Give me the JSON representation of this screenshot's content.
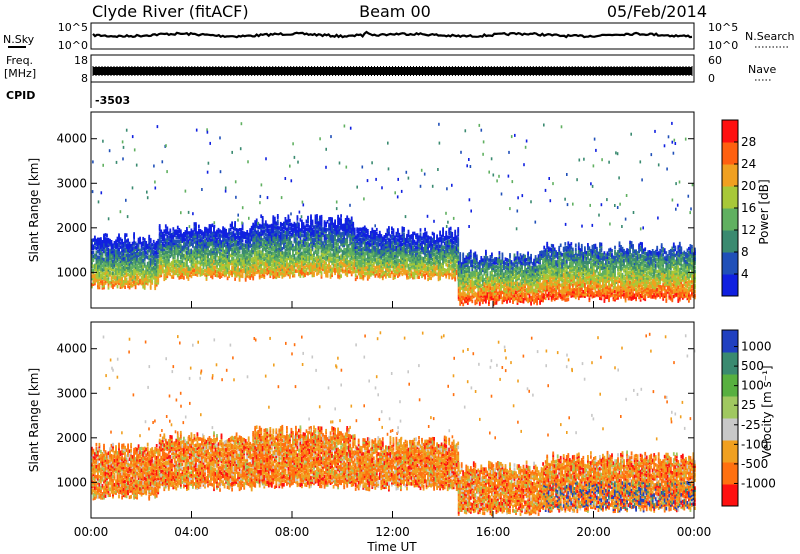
{
  "header": {
    "station": "Clyde River (fitACF)",
    "beam": "Beam 00",
    "date": "05/Feb/2014"
  },
  "noise_panel": {
    "left_label": "N.Sky",
    "left_ticks": [
      "10^5",
      "10^0"
    ],
    "right_label": "N.Search",
    "right_ticks": [
      "10^5",
      "10^0"
    ]
  },
  "freq_panel": {
    "left_label_1": "Freq.",
    "left_label_2": "[MHz]",
    "left_ticks": [
      "18",
      "8"
    ],
    "right_label": "Nave",
    "right_ticks": [
      "60",
      "0"
    ]
  },
  "cpid": {
    "label": "CPID",
    "value": "-3503"
  },
  "chart_data": [
    {
      "type": "heatmap",
      "ylabel": "Slant Range [km]",
      "ylim": [
        200,
        4600
      ],
      "yticks": [
        "1000",
        "2000",
        "3000",
        "4000"
      ],
      "x_range_hours": [
        0,
        24
      ],
      "colorbar": {
        "label": "Power [dB]",
        "ticks": [
          "4",
          "8",
          "12",
          "16",
          "20",
          "24",
          "28"
        ],
        "range": [
          0,
          32
        ],
        "colors": [
          "#1020e0",
          "#2050b8",
          "#3a8a70",
          "#60b060",
          "#a8c838",
          "#f0a020",
          "#ff6010",
          "#ff1010"
        ]
      },
      "bands": [
        {
          "t0": 0.0,
          "t1": 2.7,
          "r_lo": 700,
          "r_hi": 1750
        },
        {
          "t0": 2.7,
          "t1": 6.5,
          "r_lo": 900,
          "r_hi": 2000
        },
        {
          "t0": 6.5,
          "t1": 10.5,
          "r_lo": 950,
          "r_hi": 2150
        },
        {
          "t0": 10.5,
          "t1": 14.6,
          "r_lo": 900,
          "r_hi": 1900
        },
        {
          "t0": 14.6,
          "t1": 18.0,
          "r_lo": 350,
          "r_hi": 1350
        },
        {
          "t0": 18.0,
          "t1": 24.0,
          "r_lo": 420,
          "r_hi": 1550
        }
      ]
    },
    {
      "type": "heatmap",
      "ylabel": "Slant Range [km]",
      "ylim": [
        200,
        4600
      ],
      "yticks": [
        "1000",
        "2000",
        "3000",
        "4000"
      ],
      "x_range_hours": [
        0,
        24
      ],
      "xticks": [
        "00:00",
        "04:00",
        "08:00",
        "12:00",
        "16:00",
        "20:00",
        "00:00"
      ],
      "xlabel": "Time UT",
      "colorbar": {
        "label": "Velocity [m s⁻¹]",
        "ticks": [
          "1000",
          "500",
          "100",
          "25",
          "-25",
          "-100",
          "-500",
          "-1000"
        ],
        "colors": [
          "#2040c0",
          "#3a8a70",
          "#58b040",
          "#a0c860",
          "#c8c8c8",
          "#f0a020",
          "#ff7010",
          "#ff1010"
        ]
      }
    }
  ]
}
